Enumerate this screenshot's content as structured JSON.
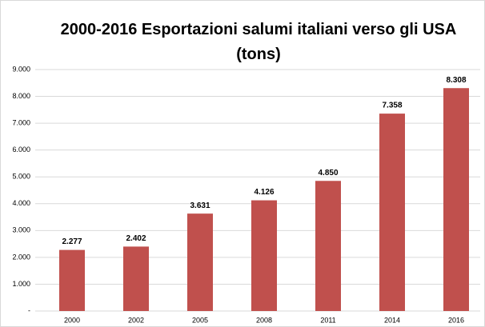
{
  "chart_data": {
    "type": "bar",
    "title": "2000-2016 Esportazioni salumi italiani verso gli USA (tons)",
    "categories": [
      "2000",
      "2002",
      "2005",
      "2008",
      "2011",
      "2014",
      "2016"
    ],
    "values": [
      2277,
      2402,
      3631,
      4126,
      4850,
      7358,
      8308
    ],
    "value_labels": [
      "2.277",
      "2.402",
      "3.631",
      "4.126",
      "4.850",
      "7.358",
      "8.308"
    ],
    "color": "#c0504d",
    "ylim": [
      0,
      9000
    ],
    "yticks": [
      {
        "value": 0,
        "label": "-"
      },
      {
        "value": 1000,
        "label": "1.000"
      },
      {
        "value": 2000,
        "label": "2.000"
      },
      {
        "value": 3000,
        "label": "3.000"
      },
      {
        "value": 4000,
        "label": "4.000"
      },
      {
        "value": 5000,
        "label": "5.000"
      },
      {
        "value": 6000,
        "label": "6.000"
      },
      {
        "value": 7000,
        "label": "7.000"
      },
      {
        "value": 8000,
        "label": "8.000"
      },
      {
        "value": 9000,
        "label": "9.000"
      }
    ],
    "grid": true
  }
}
